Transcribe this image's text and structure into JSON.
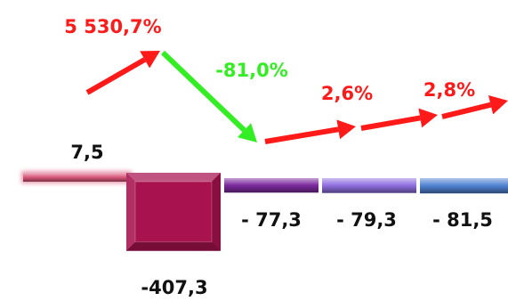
{
  "chart_data": {
    "type": "bar",
    "values": [
      7.5,
      -407.3,
      -77.3,
      -79.3,
      -81.5
    ],
    "value_labels": [
      "7,5",
      "-407,3",
      "- 77,3",
      "- 79,3",
      "- 81,5"
    ],
    "bar_colors": [
      "#d9587a",
      "#a8134f",
      "#7d2a9e",
      "#8f6ee0",
      "#4f82d2"
    ],
    "changes": [
      {
        "label": "5 530,7%",
        "value": 5530.7,
        "color": "#ff1a1a"
      },
      {
        "label": "-81,0%",
        "value": -81.0,
        "color": "#33ee22"
      },
      {
        "label": "2,6%",
        "value": 2.6,
        "color": "#ff1a1a"
      },
      {
        "label": "2,8%",
        "value": 2.8,
        "color": "#ff1a1a"
      }
    ],
    "grid": false,
    "legend": "none"
  }
}
